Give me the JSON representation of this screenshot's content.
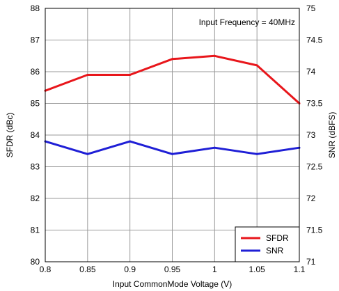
{
  "chart_data": {
    "type": "line",
    "title": "",
    "annotation": "Input Frequency = 40MHz",
    "xlabel": "Input CommonMode Voltage (V)",
    "ylabel_left": "SFDR (dBc)",
    "ylabel_right": "SNR (dBFS)",
    "x": [
      0.8,
      0.85,
      0.9,
      0.95,
      1.0,
      1.05,
      1.1
    ],
    "xlim": [
      0.8,
      1.1
    ],
    "x_ticks": [
      "0.8",
      "0.85",
      "0.9",
      "0.95",
      "1",
      "1.05",
      "1.1"
    ],
    "ylim_left": [
      80,
      88
    ],
    "y_ticks_left": [
      "80",
      "81",
      "82",
      "83",
      "84",
      "85",
      "86",
      "87",
      "88"
    ],
    "ylim_right": [
      71,
      75
    ],
    "y_ticks_right": [
      "71",
      "71.5",
      "72",
      "72.5",
      "73",
      "73.5",
      "74",
      "74.5",
      "75"
    ],
    "grid": true,
    "legend_position": "bottom-right",
    "series": [
      {
        "name": "SFDR",
        "axis": "left",
        "color": "#e8161b",
        "values": [
          85.4,
          85.9,
          85.9,
          86.4,
          86.5,
          86.2,
          85.0
        ]
      },
      {
        "name": "SNR",
        "axis": "right",
        "color": "#1f1fd6",
        "values": [
          72.9,
          72.7,
          72.9,
          72.7,
          72.8,
          72.7,
          72.8
        ]
      }
    ]
  }
}
